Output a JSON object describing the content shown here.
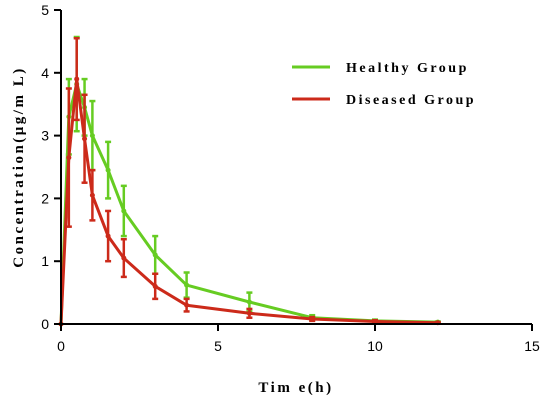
{
  "chart_data": {
    "type": "line",
    "xlabel": "Tim e(h)",
    "ylabel": "Concentration(μg/m L)",
    "xlim": [
      0,
      15
    ],
    "ylim": [
      0,
      5
    ],
    "xticks": [
      "0",
      "5",
      "10",
      "15"
    ],
    "yticks": [
      "0",
      "1",
      "2",
      "3",
      "4",
      "5"
    ],
    "grid": false,
    "legend_position": "top-right",
    "series": [
      {
        "name": "Healthy Group",
        "color": "#66cc22",
        "x": [
          0,
          0.25,
          0.5,
          0.75,
          1,
          1.5,
          2,
          3,
          4,
          6,
          8,
          10,
          12
        ],
        "y": [
          0,
          3.3,
          3.82,
          3.45,
          3.0,
          2.45,
          1.8,
          1.1,
          0.62,
          0.35,
          0.1,
          0.05,
          0.03
        ],
        "err": [
          0,
          0.6,
          0.75,
          0.45,
          0.55,
          0.45,
          0.4,
          0.3,
          0.2,
          0.15,
          0.04,
          0.02,
          0.01
        ]
      },
      {
        "name": "Diseased Group",
        "color": "#cc2a1a",
        "x": [
          0,
          0.25,
          0.5,
          0.75,
          1,
          1.5,
          2,
          3,
          4,
          6,
          8,
          10,
          12
        ],
        "y": [
          0,
          2.65,
          3.9,
          2.95,
          2.05,
          1.4,
          1.05,
          0.6,
          0.3,
          0.17,
          0.08,
          0.04,
          0.02
        ],
        "err": [
          0,
          1.1,
          0.65,
          0.7,
          0.4,
          0.4,
          0.3,
          0.2,
          0.1,
          0.07,
          0.03,
          0.02,
          0.01
        ]
      }
    ]
  }
}
